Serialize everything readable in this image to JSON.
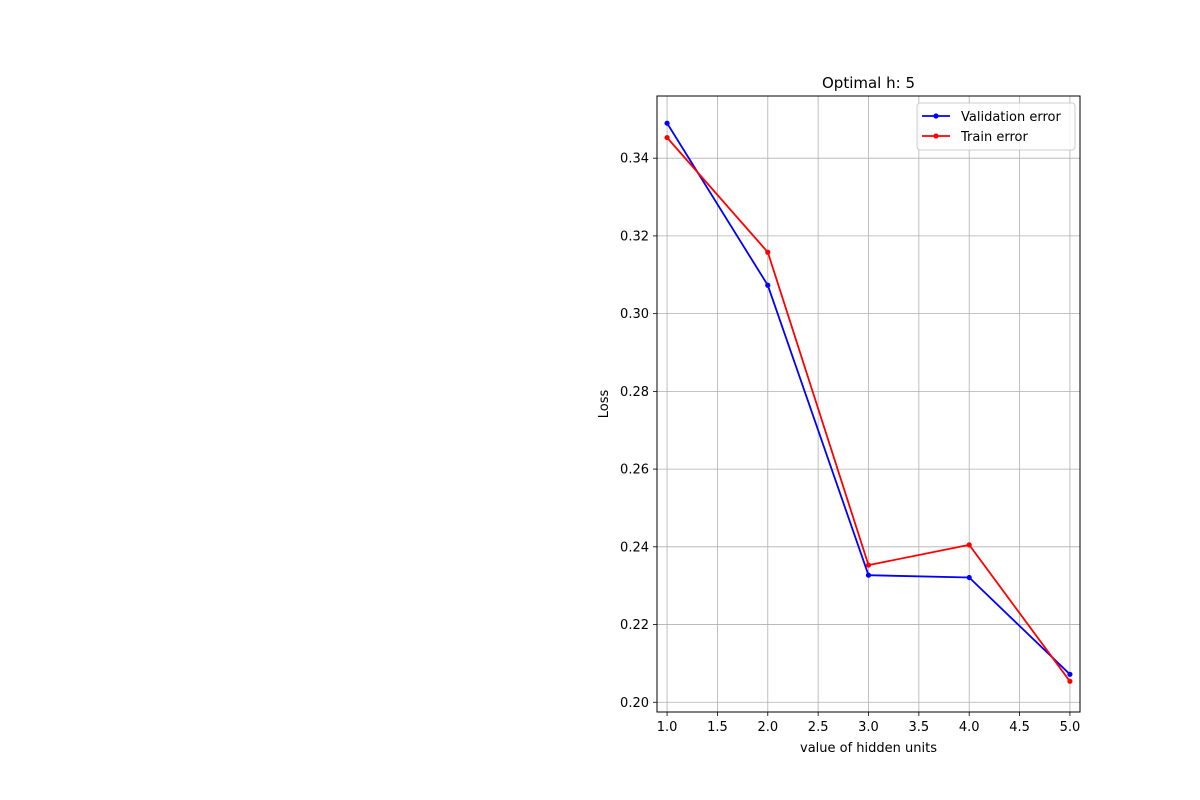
{
  "chart_data": {
    "type": "line",
    "title": "Optimal h: 5",
    "xlabel": "value of hidden units",
    "ylabel": "Loss",
    "xlim": [
      0.9,
      5.1
    ],
    "ylim": [
      0.1975,
      0.356
    ],
    "xticks": [
      1.0,
      1.5,
      2.0,
      2.5,
      3.0,
      3.5,
      4.0,
      4.5,
      5.0
    ],
    "xtick_labels": [
      "1.0",
      "1.5",
      "2.0",
      "2.5",
      "3.0",
      "3.5",
      "4.0",
      "4.5",
      "5.0"
    ],
    "yticks": [
      0.2,
      0.22,
      0.24,
      0.26,
      0.28,
      0.3,
      0.32,
      0.34
    ],
    "ytick_labels": [
      "0.20",
      "0.22",
      "0.24",
      "0.26",
      "0.28",
      "0.30",
      "0.32",
      "0.34"
    ],
    "grid": true,
    "legend_position": "top-right",
    "x": [
      1,
      2,
      3,
      4,
      5
    ],
    "series": [
      {
        "name": "Validation error",
        "color": "#0000ff",
        "values": [
          0.349,
          0.3073,
          0.2327,
          0.2321,
          0.2072
        ]
      },
      {
        "name": "Train error",
        "color": "#ff0000",
        "values": [
          0.3453,
          0.3158,
          0.2353,
          0.2405,
          0.2054
        ]
      }
    ]
  }
}
